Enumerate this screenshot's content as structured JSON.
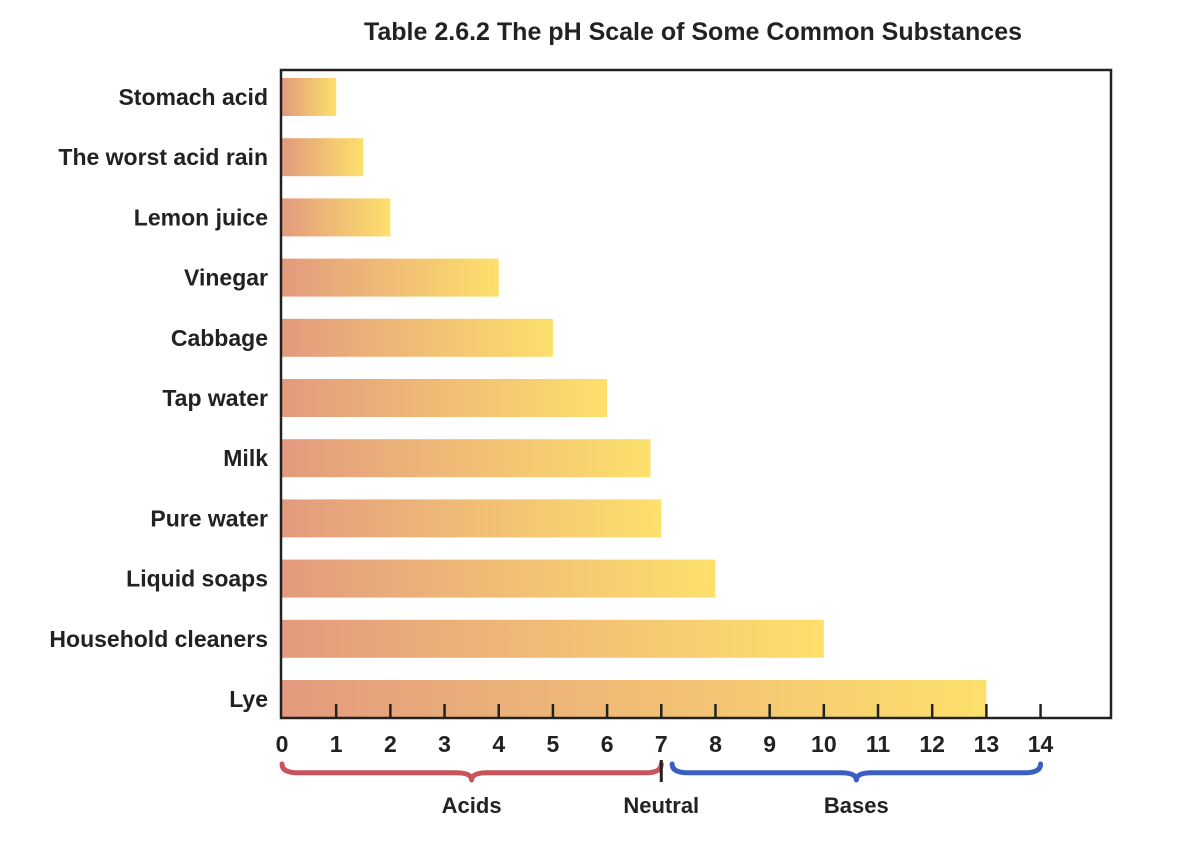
{
  "chart_data": {
    "type": "bar",
    "orientation": "horizontal",
    "title": "Table 2.6.2  The pH Scale of Some Common Substances",
    "xlabel": "",
    "ylabel": "",
    "xlim": [
      0,
      15.3
    ],
    "x_ticks": [
      0,
      1,
      2,
      3,
      4,
      5,
      6,
      7,
      8,
      9,
      10,
      11,
      12,
      13,
      14
    ],
    "categories": [
      "Stomach acid",
      "The worst acid rain",
      "Lemon juice",
      "Vinegar",
      "Cabbage",
      "Tap water",
      "Milk",
      "Pure water",
      "Liquid soaps",
      "Household cleaners",
      "Lye"
    ],
    "values": [
      1,
      1.5,
      2,
      4,
      5,
      6,
      6.8,
      7,
      8,
      10,
      13
    ],
    "grid": false,
    "legend": "none",
    "regions": [
      {
        "label": "Acids",
        "from": 0,
        "to": 7,
        "color": "#c8545b"
      },
      {
        "label": "Neutral",
        "at": 7,
        "color": "#222222"
      },
      {
        "label": "Bases",
        "from": 7.2,
        "to": 14,
        "color": "#3b5fc0"
      }
    ],
    "colors": {
      "bar_start": "#e39a7e",
      "bar_end": "#fde06c",
      "axis": "#222222"
    }
  }
}
